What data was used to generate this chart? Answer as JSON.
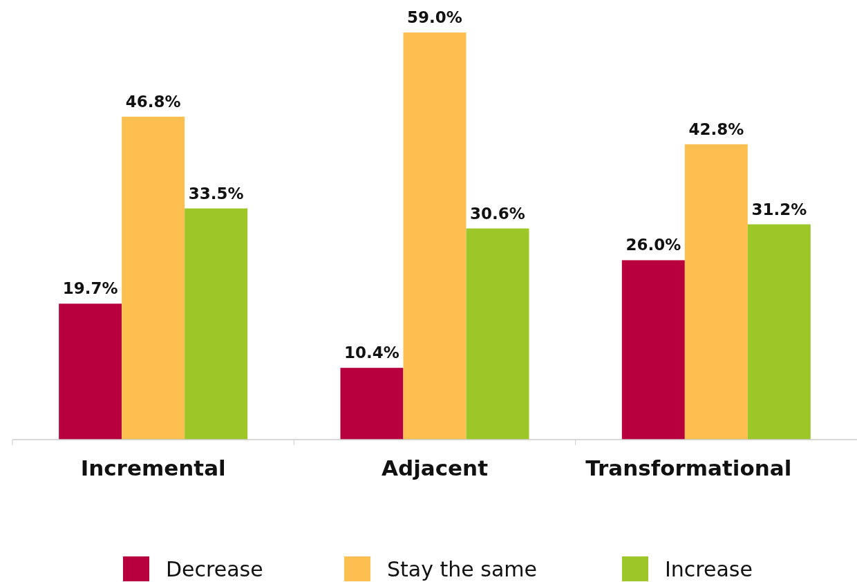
{
  "chart_data": {
    "type": "bar",
    "categories": [
      "Incremental",
      "Adjacent",
      "Transformational"
    ],
    "series": [
      {
        "name": "Decrease",
        "color": "#b8003f",
        "values": [
          19.7,
          10.4,
          26.0
        ],
        "value_labels": [
          "19.7%",
          "10.4%",
          "26.0%"
        ]
      },
      {
        "name": "Stay the same",
        "color": "#fdbf50",
        "values": [
          46.8,
          59.0,
          42.8
        ],
        "value_labels": [
          "46.8%",
          "59.0%",
          "42.8%"
        ]
      },
      {
        "name": "Increase",
        "color": "#9dc628",
        "values": [
          33.5,
          30.6,
          31.2
        ],
        "value_labels": [
          "33.5%",
          "30.6%",
          "31.2%"
        ]
      }
    ],
    "legend": "bottom"
  }
}
